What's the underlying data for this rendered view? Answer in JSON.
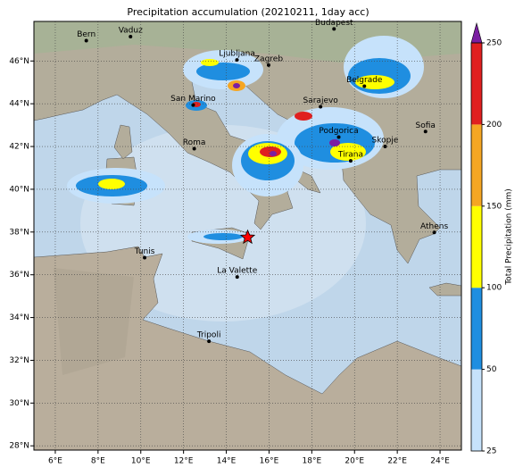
{
  "title": "Precipitation accumulation (20210211, 1day acc)",
  "map": {
    "lonlim": [
      5,
      25
    ],
    "latlim": [
      27.8,
      47.85
    ],
    "grid": true,
    "xticks": [
      {
        "value": 6,
        "label": "6°E"
      },
      {
        "value": 8,
        "label": "8°E"
      },
      {
        "value": 10,
        "label": "10°E"
      },
      {
        "value": 12,
        "label": "12°E"
      },
      {
        "value": 14,
        "label": "14°E"
      },
      {
        "value": 16,
        "label": "16°E"
      },
      {
        "value": 18,
        "label": "18°E"
      },
      {
        "value": 20,
        "label": "20°E"
      },
      {
        "value": 22,
        "label": "22°E"
      },
      {
        "value": 24,
        "label": "24°E"
      }
    ],
    "yticks": [
      {
        "value": 28,
        "label": "28°N"
      },
      {
        "value": 30,
        "label": "30°N"
      },
      {
        "value": 32,
        "label": "32°N"
      },
      {
        "value": 34,
        "label": "34°N"
      },
      {
        "value": 36,
        "label": "36°N"
      },
      {
        "value": 38,
        "label": "38°N"
      },
      {
        "value": 40,
        "label": "40°N"
      },
      {
        "value": 42,
        "label": "42°N"
      },
      {
        "value": 44,
        "label": "44°N"
      },
      {
        "value": 46,
        "label": "46°N"
      }
    ]
  },
  "cities": [
    {
      "name": "Bern",
      "lon": 7.45,
      "lat": 46.95
    },
    {
      "name": "Vaduz",
      "lon": 9.52,
      "lat": 47.14
    },
    {
      "name": "Budapest",
      "lon": 19.04,
      "lat": 47.5
    },
    {
      "name": "Ljubljana",
      "lon": 14.5,
      "lat": 46.05
    },
    {
      "name": "Zagreb",
      "lon": 15.98,
      "lat": 45.81
    },
    {
      "name": "Belgrade",
      "lon": 20.46,
      "lat": 44.82
    },
    {
      "name": "San Marino",
      "lon": 12.45,
      "lat": 43.94
    },
    {
      "name": "Sarajevo",
      "lon": 18.41,
      "lat": 43.86
    },
    {
      "name": "Roma",
      "lon": 12.5,
      "lat": 41.9
    },
    {
      "name": "Podgorica",
      "lon": 19.26,
      "lat": 42.44
    },
    {
      "name": "Skopje",
      "lon": 21.43,
      "lat": 42.0
    },
    {
      "name": "Sofia",
      "lon": 23.32,
      "lat": 42.7
    },
    {
      "name": "Tirana",
      "lon": 19.82,
      "lat": 41.33
    },
    {
      "name": "Athens",
      "lon": 23.73,
      "lat": 37.98
    },
    {
      "name": "Tunis",
      "lon": 10.18,
      "lat": 36.8
    },
    {
      "name": "La Valette",
      "lon": 14.51,
      "lat": 35.9
    },
    {
      "name": "Tripoli",
      "lon": 13.19,
      "lat": 32.89
    }
  ],
  "marker": {
    "lon": 15.0,
    "lat": 37.75,
    "color": "#ff0000"
  },
  "colorbar": {
    "label": "Total Precipitation (mm)",
    "ticks": [
      25,
      50,
      100,
      150,
      200,
      250
    ],
    "colors": [
      "#c6e2fb",
      "#1f8ee0",
      "#ffff00",
      "#f5a623",
      "#e02020"
    ],
    "extend_color": "#7b1fa2"
  }
}
